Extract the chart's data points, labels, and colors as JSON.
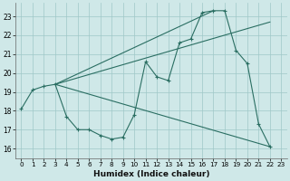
{
  "xlabel": "Humidex (Indice chaleur)",
  "xlim": [
    -0.5,
    23.5
  ],
  "ylim": [
    15.5,
    23.7
  ],
  "yticks": [
    16,
    17,
    18,
    19,
    20,
    21,
    22,
    23
  ],
  "xticks": [
    0,
    1,
    2,
    3,
    4,
    5,
    6,
    7,
    8,
    9,
    10,
    11,
    12,
    13,
    14,
    15,
    16,
    17,
    18,
    19,
    20,
    21,
    22,
    23
  ],
  "background_color": "#cfe8e8",
  "grid_color": "#9fc8c8",
  "line_color": "#2a6e62",
  "main_series_x": [
    0,
    1,
    2,
    3,
    4,
    5,
    6,
    7,
    8,
    9,
    10,
    11,
    12,
    13,
    14,
    15,
    16,
    17,
    18,
    19,
    20,
    21,
    22
  ],
  "main_series_y": [
    18.1,
    19.1,
    19.3,
    19.4,
    17.7,
    17.0,
    17.0,
    16.7,
    16.5,
    16.6,
    17.8,
    20.6,
    19.8,
    19.6,
    21.6,
    21.8,
    23.2,
    23.3,
    23.3,
    21.2,
    20.5,
    17.3,
    16.1
  ],
  "straight_lines": [
    {
      "x": [
        3,
        22
      ],
      "y": [
        19.4,
        16.1
      ]
    },
    {
      "x": [
        3,
        17
      ],
      "y": [
        19.4,
        23.3
      ]
    },
    {
      "x": [
        3,
        22
      ],
      "y": [
        19.4,
        22.7
      ]
    }
  ]
}
